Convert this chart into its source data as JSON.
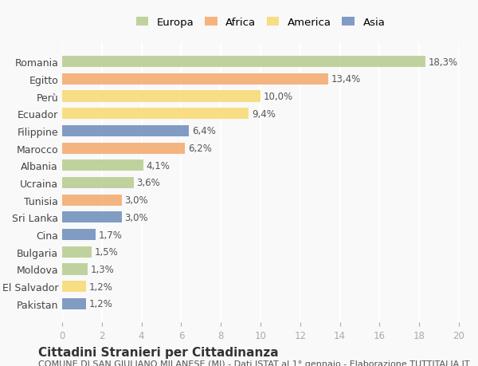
{
  "countries": [
    "Romania",
    "Egitto",
    "Perù",
    "Ecuador",
    "Filippine",
    "Marocco",
    "Albania",
    "Ucraina",
    "Tunisia",
    "Sri Lanka",
    "Cina",
    "Bulgaria",
    "Moldova",
    "El Salvador",
    "Pakistan"
  ],
  "values": [
    18.3,
    13.4,
    10.0,
    9.4,
    6.4,
    6.2,
    4.1,
    3.6,
    3.0,
    3.0,
    1.7,
    1.5,
    1.3,
    1.2,
    1.2
  ],
  "labels": [
    "18,3%",
    "13,4%",
    "10,0%",
    "9,4%",
    "6,4%",
    "6,2%",
    "4,1%",
    "3,6%",
    "3,0%",
    "3,0%",
    "1,7%",
    "1,5%",
    "1,3%",
    "1,2%",
    "1,2%"
  ],
  "continents": [
    "Europa",
    "Africa",
    "America",
    "America",
    "Asia",
    "Africa",
    "Europa",
    "Europa",
    "Africa",
    "Asia",
    "Asia",
    "Europa",
    "Europa",
    "America",
    "Asia"
  ],
  "colors": {
    "Europa": "#b5cc8e",
    "Africa": "#f4a86a",
    "America": "#f7d870",
    "Asia": "#6b8cba"
  },
  "legend_colors": {
    "Europa": "#b5cc8e",
    "Africa": "#f4a86a",
    "America": "#f7d870",
    "Asia": "#6b8cba"
  },
  "xlim": [
    0,
    20
  ],
  "xticks": [
    0,
    2,
    4,
    6,
    8,
    10,
    12,
    14,
    16,
    18,
    20
  ],
  "title": "Cittadini Stranieri per Cittadinanza",
  "subtitle": "COMUNE DI SAN GIULIANO MILANESE (MI) - Dati ISTAT al 1° gennaio - Elaborazione TUTTITALIA.IT",
  "background_color": "#f9f9f9",
  "grid_color": "#ffffff",
  "bar_height": 0.65,
  "label_fontsize": 8.5,
  "title_fontsize": 11,
  "subtitle_fontsize": 8
}
